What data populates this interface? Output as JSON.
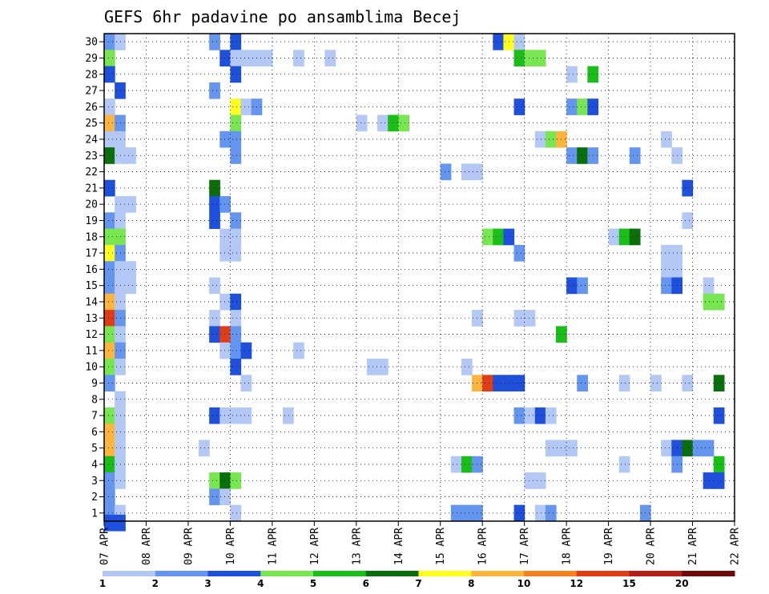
{
  "chart_data": {
    "type": "heatmap",
    "title": "GEFS 6hr padavine po ansamblima Becej",
    "xlabel": "",
    "ylabel": "",
    "x_ticks": [
      "07 APR",
      "08 APR",
      "09 APR",
      "10 APR",
      "11 APR",
      "12 APR",
      "13 APR",
      "14 APR",
      "15 APR",
      "16 APR",
      "17 APR",
      "18 APR",
      "19 APR",
      "20 APR",
      "21 APR",
      "22 APR"
    ],
    "x_unit": "day_index_from_07_APR",
    "xlim": [
      0,
      15
    ],
    "y_ticks": [
      1,
      2,
      3,
      4,
      5,
      6,
      7,
      8,
      9,
      10,
      11,
      12,
      13,
      14,
      15,
      16,
      17,
      18,
      19,
      20,
      21,
      22,
      23,
      24,
      25,
      26,
      27,
      28,
      29,
      30
    ],
    "ylim": [
      0.5,
      30.5
    ],
    "grid": true,
    "grid_style": "dotted",
    "colorbar": {
      "thresholds": [
        "1",
        "2",
        "3",
        "4",
        "5",
        "6",
        "7",
        "8",
        "10",
        "12",
        "15",
        "20"
      ],
      "colors": [
        "#b4c8f5",
        "#6496f0",
        "#1e50dc",
        "#78e650",
        "#19be19",
        "#0a6e0a",
        "#ffff1e",
        "#ffb43c",
        "#f5821e",
        "#e13c14",
        "#b41e14",
        "#6e0a0a"
      ]
    },
    "cells": [
      [
        30,
        0.125,
        2
      ],
      [
        30,
        0.375,
        1
      ],
      [
        30,
        2.625,
        2
      ],
      [
        30,
        3.125,
        3
      ],
      [
        30,
        9.375,
        3
      ],
      [
        30,
        9.625,
        7
      ],
      [
        30,
        9.875,
        1
      ],
      [
        29,
        0.125,
        4
      ],
      [
        29,
        2.875,
        3
      ],
      [
        29,
        3.125,
        1
      ],
      [
        29,
        3.375,
        1
      ],
      [
        29,
        3.625,
        1
      ],
      [
        29,
        3.875,
        1
      ],
      [
        29,
        4.625,
        1
      ],
      [
        29,
        5.375,
        1
      ],
      [
        29,
        9.875,
        5
      ],
      [
        29,
        10.125,
        4
      ],
      [
        29,
        10.375,
        4
      ],
      [
        28,
        0.125,
        3
      ],
      [
        28,
        3.125,
        3
      ],
      [
        28,
        11.125,
        1
      ],
      [
        28,
        11.625,
        5
      ],
      [
        27,
        0.375,
        3
      ],
      [
        27,
        2.625,
        2
      ],
      [
        26,
        0.125,
        1
      ],
      [
        26,
        3.125,
        7
      ],
      [
        26,
        3.375,
        1
      ],
      [
        26,
        3.625,
        2
      ],
      [
        26,
        9.875,
        3
      ],
      [
        26,
        11.125,
        2
      ],
      [
        26,
        11.375,
        4
      ],
      [
        26,
        11.625,
        3
      ],
      [
        25,
        0.125,
        8
      ],
      [
        25,
        0.375,
        2
      ],
      [
        25,
        3.125,
        4
      ],
      [
        25,
        6.125,
        1
      ],
      [
        25,
        6.625,
        1
      ],
      [
        25,
        6.875,
        5
      ],
      [
        25,
        7.125,
        4
      ],
      [
        24,
        0.125,
        1
      ],
      [
        24,
        0.375,
        1
      ],
      [
        24,
        2.875,
        2
      ],
      [
        24,
        3.125,
        2
      ],
      [
        24,
        10.375,
        1
      ],
      [
        24,
        10.625,
        4
      ],
      [
        24,
        10.875,
        8
      ],
      [
        24,
        13.375,
        1
      ],
      [
        23,
        0.125,
        6
      ],
      [
        23,
        0.375,
        1
      ],
      [
        23,
        0.625,
        1
      ],
      [
        23,
        3.125,
        2
      ],
      [
        23,
        11.125,
        2
      ],
      [
        23,
        11.375,
        6
      ],
      [
        23,
        11.625,
        2
      ],
      [
        23,
        12.625,
        2
      ],
      [
        23,
        13.625,
        1
      ],
      [
        22,
        8.125,
        2
      ],
      [
        22,
        8.625,
        1
      ],
      [
        22,
        8.875,
        1
      ],
      [
        21,
        0.125,
        3
      ],
      [
        21,
        2.625,
        6
      ],
      [
        21,
        13.875,
        3
      ],
      [
        20,
        0.375,
        1
      ],
      [
        20,
        0.625,
        1
      ],
      [
        20,
        2.625,
        3
      ],
      [
        20,
        2.875,
        2
      ],
      [
        19,
        0.125,
        2
      ],
      [
        19,
        0.375,
        1
      ],
      [
        19,
        2.625,
        3
      ],
      [
        19,
        3.125,
        2
      ],
      [
        19,
        13.875,
        1
      ],
      [
        18,
        0.125,
        4
      ],
      [
        18,
        0.375,
        4
      ],
      [
        18,
        2.875,
        1
      ],
      [
        18,
        3.125,
        1
      ],
      [
        18,
        9.125,
        4
      ],
      [
        18,
        9.375,
        5
      ],
      [
        18,
        9.625,
        3
      ],
      [
        18,
        12.125,
        1
      ],
      [
        18,
        12.375,
        5
      ],
      [
        18,
        12.625,
        6
      ],
      [
        17,
        0.125,
        7
      ],
      [
        17,
        0.375,
        2
      ],
      [
        17,
        2.875,
        1
      ],
      [
        17,
        3.125,
        1
      ],
      [
        17,
        9.875,
        2
      ],
      [
        17,
        13.375,
        1
      ],
      [
        17,
        13.625,
        1
      ],
      [
        16,
        0.125,
        2
      ],
      [
        16,
        0.375,
        1
      ],
      [
        16,
        0.625,
        1
      ],
      [
        16,
        13.375,
        1
      ],
      [
        16,
        13.625,
        1
      ],
      [
        15,
        0.125,
        2
      ],
      [
        15,
        0.375,
        1
      ],
      [
        15,
        0.625,
        1
      ],
      [
        15,
        2.625,
        1
      ],
      [
        15,
        11.125,
        3
      ],
      [
        15,
        11.375,
        2
      ],
      [
        15,
        13.375,
        2
      ],
      [
        15,
        13.625,
        3
      ],
      [
        15,
        14.375,
        1
      ],
      [
        14,
        0.125,
        8
      ],
      [
        14,
        0.375,
        1
      ],
      [
        14,
        2.875,
        1
      ],
      [
        14,
        3.125,
        3
      ],
      [
        14,
        14.375,
        4
      ],
      [
        14,
        14.625,
        4
      ],
      [
        13,
        0.125,
        10
      ],
      [
        13,
        0.375,
        2
      ],
      [
        13,
        2.625,
        1
      ],
      [
        13,
        3.125,
        1
      ],
      [
        13,
        8.875,
        1
      ],
      [
        13,
        9.875,
        1
      ],
      [
        13,
        10.125,
        1
      ],
      [
        12,
        0.125,
        4
      ],
      [
        12,
        0.375,
        1
      ],
      [
        12,
        2.625,
        3
      ],
      [
        12,
        2.875,
        10
      ],
      [
        12,
        3.125,
        2
      ],
      [
        12,
        10.875,
        5
      ],
      [
        11,
        0.125,
        8
      ],
      [
        11,
        0.375,
        2
      ],
      [
        11,
        2.875,
        1
      ],
      [
        11,
        3.125,
        2
      ],
      [
        11,
        3.375,
        3
      ],
      [
        11,
        4.625,
        1
      ],
      [
        10,
        0.125,
        4
      ],
      [
        10,
        0.375,
        1
      ],
      [
        10,
        3.125,
        3
      ],
      [
        10,
        6.375,
        1
      ],
      [
        10,
        6.625,
        1
      ],
      [
        10,
        8.625,
        1
      ],
      [
        9,
        0.125,
        2
      ],
      [
        9,
        3.375,
        1
      ],
      [
        9,
        8.875,
        8
      ],
      [
        9,
        9.125,
        10
      ],
      [
        9,
        9.375,
        3
      ],
      [
        9,
        9.625,
        3
      ],
      [
        9,
        9.875,
        3
      ],
      [
        9,
        11.375,
        2
      ],
      [
        9,
        12.375,
        1
      ],
      [
        9,
        13.125,
        1
      ],
      [
        9,
        13.875,
        1
      ],
      [
        9,
        14.625,
        6
      ],
      [
        8,
        0.375,
        1
      ],
      [
        7,
        0.125,
        4
      ],
      [
        7,
        0.375,
        1
      ],
      [
        7,
        2.625,
        3
      ],
      [
        7,
        2.875,
        1
      ],
      [
        7,
        3.125,
        1
      ],
      [
        7,
        3.375,
        1
      ],
      [
        7,
        4.375,
        1
      ],
      [
        7,
        9.875,
        2
      ],
      [
        7,
        10.125,
        1
      ],
      [
        7,
        10.375,
        3
      ],
      [
        7,
        10.625,
        1
      ],
      [
        7,
        14.625,
        3
      ],
      [
        6,
        0.125,
        8
      ],
      [
        6,
        0.375,
        1
      ],
      [
        5,
        0.125,
        8
      ],
      [
        5,
        0.375,
        1
      ],
      [
        5,
        2.375,
        1
      ],
      [
        5,
        10.625,
        1
      ],
      [
        5,
        10.875,
        1
      ],
      [
        5,
        11.125,
        1
      ],
      [
        5,
        13.375,
        1
      ],
      [
        5,
        13.625,
        3
      ],
      [
        5,
        13.875,
        6
      ],
      [
        5,
        14.125,
        2
      ],
      [
        5,
        14.375,
        2
      ],
      [
        4,
        0.125,
        5
      ],
      [
        4,
        0.375,
        1
      ],
      [
        4,
        8.375,
        1
      ],
      [
        4,
        8.625,
        5
      ],
      [
        4,
        8.875,
        2
      ],
      [
        4,
        12.375,
        1
      ],
      [
        4,
        13.625,
        2
      ],
      [
        4,
        14.625,
        5
      ],
      [
        3,
        0.125,
        2
      ],
      [
        3,
        0.375,
        1
      ],
      [
        3,
        2.625,
        4
      ],
      [
        3,
        2.875,
        6
      ],
      [
        3,
        3.125,
        4
      ],
      [
        3,
        10.125,
        1
      ],
      [
        3,
        10.375,
        1
      ],
      [
        3,
        14.375,
        3
      ],
      [
        3,
        14.625,
        3
      ],
      [
        2,
        0.125,
        2
      ],
      [
        2,
        2.625,
        2
      ],
      [
        2,
        2.875,
        1
      ],
      [
        1,
        0.125,
        2
      ],
      [
        1,
        0.375,
        1
      ],
      [
        1,
        3.125,
        1
      ],
      [
        1,
        8.375,
        2
      ],
      [
        1,
        8.625,
        2
      ],
      [
        1,
        8.875,
        2
      ],
      [
        1,
        9.875,
        3
      ],
      [
        1,
        10.375,
        1
      ],
      [
        1,
        10.625,
        2
      ],
      [
        1,
        12.875,
        2
      ],
      [
        0.4,
        0.125,
        3
      ],
      [
        0.4,
        0.375,
        3
      ]
    ]
  }
}
